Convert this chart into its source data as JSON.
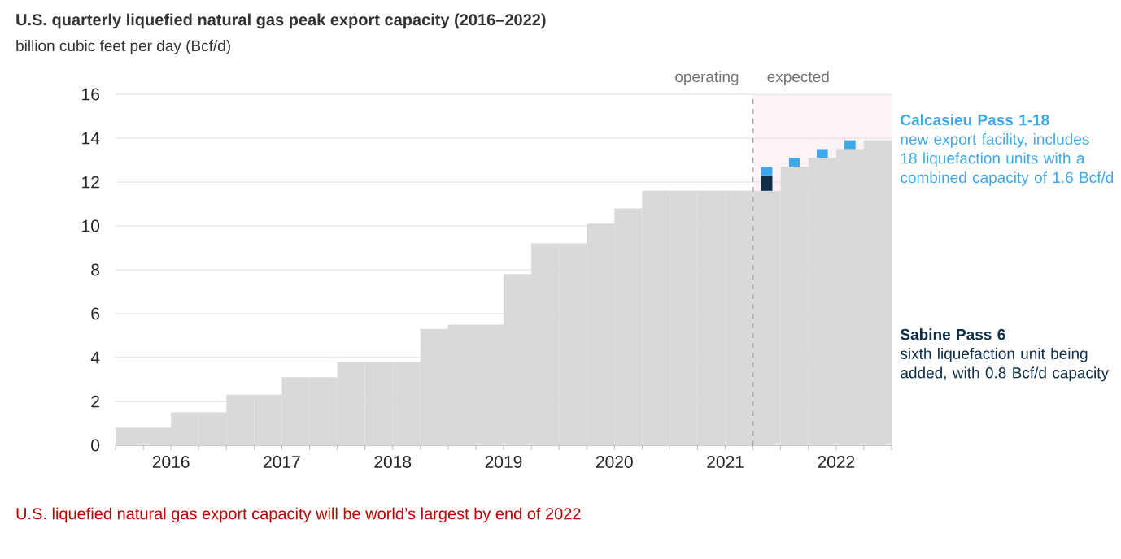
{
  "chart_data": {
    "type": "bar",
    "stacked": true,
    "title": "U.S. quarterly liquefied natural gas peak export capacity (2016–2022)",
    "ylabel": "billion cubic feet per day (Bcf/d)",
    "x": [
      2016.125,
      2016.375,
      2016.625,
      2016.875,
      2017.125,
      2017.375,
      2017.625,
      2017.875,
      2018.125,
      2018.375,
      2018.625,
      2018.875,
      2019.125,
      2019.375,
      2019.625,
      2019.875,
      2020.125,
      2020.375,
      2020.625,
      2020.875,
      2021.125,
      2021.375,
      2021.625,
      2021.875,
      2022.125,
      2022.375,
      2022.625,
      2022.875
    ],
    "series": [
      {
        "color": "#d9d9d9",
        "values": [
          0.8,
          0.8,
          1.5,
          1.5,
          2.3,
          2.3,
          3.1,
          3.1,
          3.8,
          3.8,
          3.8,
          5.3,
          5.5,
          5.5,
          7.8,
          9.2,
          9.2,
          10.1,
          10.8,
          11.6,
          11.6,
          11.6,
          11.6,
          11.6,
          12.7,
          13.1,
          13.5,
          13.9
        ]
      },
      {
        "name": "Sabine Pass 6",
        "color": "#0f2f4b",
        "values": [
          null,
          null,
          null,
          null,
          null,
          null,
          null,
          null,
          null,
          null,
          null,
          null,
          null,
          null,
          null,
          null,
          null,
          null,
          null,
          null,
          null,
          null,
          null,
          0.7,
          null,
          null,
          null,
          null
        ]
      },
      {
        "name": "Calcasieu Pass 1-18",
        "color": "#3fa9e8",
        "values": [
          null,
          null,
          null,
          null,
          null,
          null,
          null,
          null,
          null,
          null,
          null,
          null,
          null,
          null,
          null,
          null,
          null,
          null,
          null,
          null,
          null,
          null,
          null,
          0.4,
          0.4,
          0.4,
          0.4,
          null
        ]
      }
    ],
    "xlim": [
      2016,
      2023
    ],
    "xticks": [
      {
        "value": 2016,
        "label": null
      },
      {
        "value": 2016.25,
        "label": null
      },
      {
        "value": 2016.5,
        "label": "2016"
      },
      {
        "value": 2016.75,
        "label": null
      },
      {
        "value": 2017,
        "label": null
      },
      {
        "value": 2017.25,
        "label": null
      },
      {
        "value": 2017.5,
        "label": "2017"
      },
      {
        "value": 2017.75,
        "label": null
      },
      {
        "value": 2018,
        "label": null
      },
      {
        "value": 2018.25,
        "label": null
      },
      {
        "value": 2018.5,
        "label": "2018"
      },
      {
        "value": 2018.75,
        "label": null
      },
      {
        "value": 2019,
        "label": null
      },
      {
        "value": 2019.25,
        "label": null
      },
      {
        "value": 2019.5,
        "label": "2019"
      },
      {
        "value": 2019.75,
        "label": null
      },
      {
        "value": 2020,
        "label": null
      },
      {
        "value": 2020.25,
        "label": null
      },
      {
        "value": 2020.5,
        "label": "2020"
      },
      {
        "value": 2020.75,
        "label": null
      },
      {
        "value": 2021,
        "label": null
      },
      {
        "value": 2021.25,
        "label": null
      },
      {
        "value": 2021.5,
        "label": "2021"
      },
      {
        "value": 2021.75,
        "label": null
      },
      {
        "value": 2022,
        "label": null
      },
      {
        "value": 2022.25,
        "label": null
      },
      {
        "value": 2022.5,
        "label": "2022"
      },
      {
        "value": 2022.75,
        "label": null
      },
      {
        "value": 2023,
        "label": null
      }
    ],
    "ylim": [
      0,
      16
    ],
    "yticks": [
      0,
      2,
      4,
      6,
      8,
      10,
      12,
      14,
      16
    ],
    "grid": "y",
    "ref_lines": [
      {
        "axis": "x",
        "value": 2021.75,
        "label": "operating",
        "color": "#aaaaaa",
        "line_style": "dashed"
      }
    ],
    "bands": [
      {
        "axis": "x",
        "from": 2021.75,
        "to": 2023,
        "label": "expected",
        "color": "#fcf4f4"
      }
    ],
    "annotations": [
      "new export facility, includes 18 liquefaction units with a combined capacity of 1.6 Bcf/d",
      "sixth liquefaction unit being added, with 0.8 Bcf/d capacity",
      "U.S. liquefied natural gas export capacity will be world’s largest by end of 2022"
    ]
  }
}
